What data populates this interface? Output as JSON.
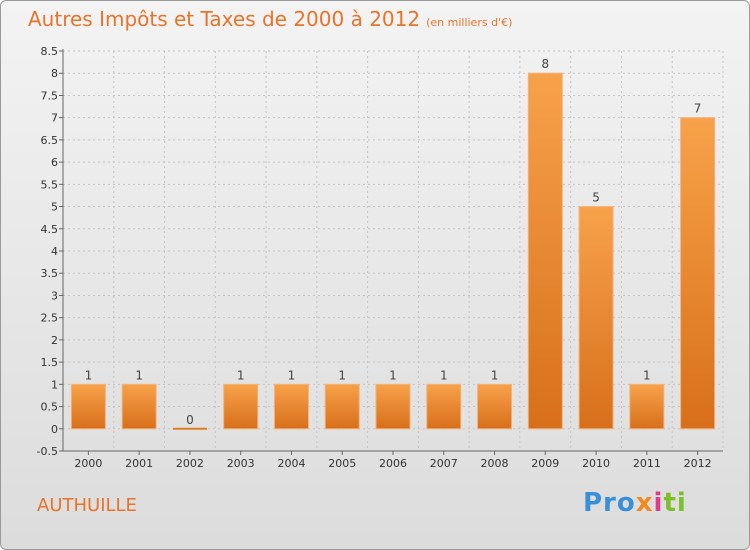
{
  "header": {
    "title": "Autres Impôts et Taxes de 2000 à 2012",
    "subtitle": "(en milliers d'€)"
  },
  "footer": {
    "commune": "AUTHUILLE"
  },
  "logo": {
    "parts": [
      "Pro",
      "x",
      "i",
      "ti"
    ]
  },
  "colors": {
    "bar": "#f08a2c",
    "title": "#e8742a"
  },
  "chart_data": {
    "type": "bar",
    "title": "Autres Impôts et Taxes de 2000 à 2012",
    "subtitle": "(en milliers d'€)",
    "xlabel": "",
    "ylabel": "",
    "categories": [
      "2000",
      "2001",
      "2002",
      "2003",
      "2004",
      "2005",
      "2006",
      "2007",
      "2008",
      "2009",
      "2010",
      "2011",
      "2012"
    ],
    "values": [
      1,
      1,
      0,
      1,
      1,
      1,
      1,
      1,
      1,
      8,
      5,
      1,
      7
    ],
    "data_labels": [
      "1",
      "1",
      "0",
      "1",
      "1",
      "1",
      "1",
      "1",
      "1",
      "8",
      "5",
      "1",
      "7"
    ],
    "ylim": [
      -0.5,
      8.5
    ],
    "yticks": [
      "-0.5",
      "0",
      "0.5",
      "1",
      "1.5",
      "2",
      "2.5",
      "3",
      "3.5",
      "4",
      "4.5",
      "5",
      "5.5",
      "6",
      "6.5",
      "7",
      "7.5",
      "8",
      "8.5"
    ],
    "grid": true
  }
}
